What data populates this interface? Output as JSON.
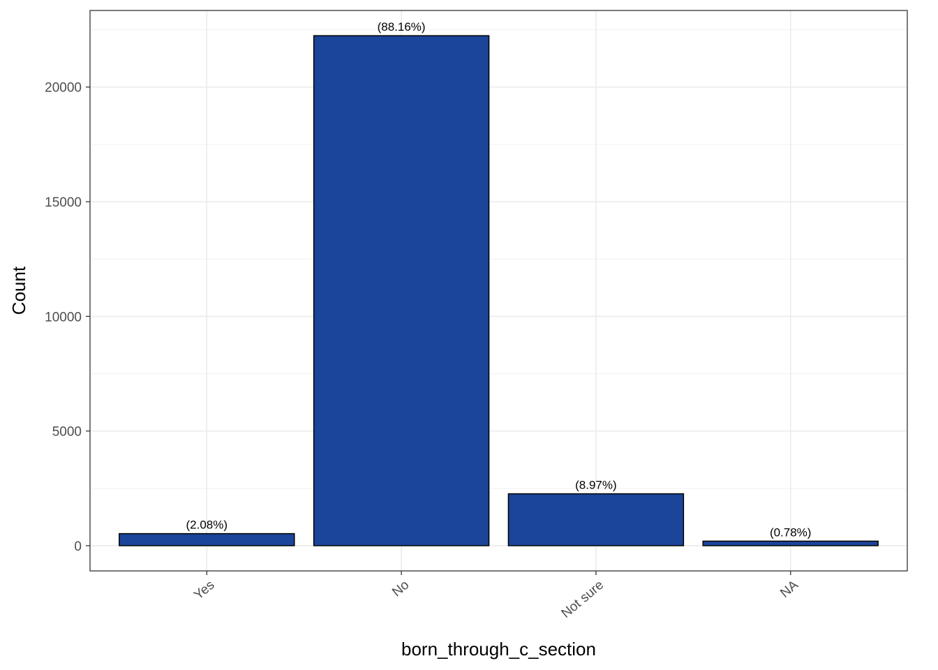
{
  "chart_data": {
    "type": "bar",
    "xlabel": "born_through_c_section",
    "ylabel": "Count",
    "categories": [
      "Yes",
      "No",
      "Not sure",
      "NA"
    ],
    "values": [
      525,
      22240,
      2263,
      197
    ],
    "data_labels": [
      "(2.08%)",
      "(88.16%)",
      "(8.97%)",
      "(0.78%)"
    ],
    "ylim": [
      -1100,
      23340
    ],
    "yticks": [
      0,
      5000,
      10000,
      15000,
      20000
    ],
    "ytick_labels": [
      "0",
      "5000",
      "10000",
      "15000",
      "20000"
    ],
    "grid": true,
    "legend": "none",
    "bar_fill": "#1A4599",
    "bar_outline": "#000000"
  }
}
